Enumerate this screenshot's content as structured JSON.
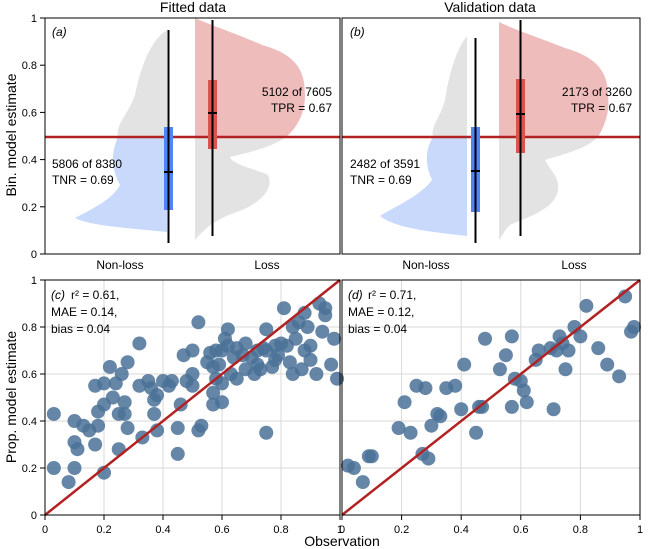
{
  "titles": {
    "left": "Fitted data",
    "right": "Validation data"
  },
  "labels": {
    "ylabel_top": "Bin. model estimate",
    "ylabel_bottom": "Prop. model estimate",
    "xlabel_bottom": "Observation",
    "cat_nonloss": "Non-loss",
    "cat_loss": "Loss"
  },
  "panels_top": [
    {
      "tag": "(a)",
      "tpr_count": "5102 of 7605",
      "tpr": "TPR = 0.67",
      "tnr_count": "5806 of 8380",
      "tnr": "TNR = 0.69"
    },
    {
      "tag": "(b)",
      "tpr_count": "2173 of 3260",
      "tpr": "TPR = 0.67",
      "tnr_count": "2482 of 3591",
      "tnr": "TNR = 0.69"
    }
  ],
  "panels_bottom": [
    {
      "tag": "(c)",
      "r2": "r² = 0.61,",
      "mae": "MAE = 0.14,",
      "bias": "bias = 0.04"
    },
    {
      "tag": "(d)",
      "r2": "r² = 0.71,",
      "mae": "MAE = 0.12,",
      "bias": "bias = 0.04"
    }
  ],
  "colors": {
    "threshold": "#b22222",
    "nonloss": "#4f86f7",
    "loss": "#d9534f",
    "nonloss_fill": "#c9d9fb",
    "loss_fill": "#efbcbc",
    "grey_fill": "#e3e3e3",
    "point": "#4a7196"
  },
  "chart_data": [
    {
      "type": "violin",
      "panel": "a",
      "title": "Fitted data",
      "ylabel": "Bin. model estimate",
      "categories": [
        "Non-loss",
        "Loss"
      ],
      "ylim": [
        0,
        1
      ],
      "yticks": [
        0,
        0.2,
        0.4,
        0.6,
        0.8,
        1
      ],
      "threshold": 0.5,
      "boxes": [
        {
          "category": "Non-loss",
          "median": 0.35,
          "q1": 0.18,
          "q3": 0.54,
          "whisker_low": 0.04,
          "whisker_high": 0.95
        },
        {
          "category": "Loss",
          "median": 0.6,
          "q1": 0.45,
          "q3": 0.74,
          "whisker_low": 0.08,
          "whisker_high": 0.98
        }
      ]
    },
    {
      "type": "violin",
      "panel": "b",
      "title": "Validation data",
      "categories": [
        "Non-loss",
        "Loss"
      ],
      "ylim": [
        0,
        1
      ],
      "yticks": [
        0,
        0.2,
        0.4,
        0.6,
        0.8,
        1
      ],
      "threshold": 0.5,
      "boxes": [
        {
          "category": "Non-loss",
          "median": 0.35,
          "q1": 0.18,
          "q3": 0.54,
          "whisker_low": 0.04,
          "whisker_high": 0.93
        },
        {
          "category": "Loss",
          "median": 0.595,
          "q1": 0.44,
          "q3": 0.74,
          "whisker_low": 0.08,
          "whisker_high": 0.98
        }
      ]
    },
    {
      "type": "scatter",
      "panel": "c",
      "xlabel": "Observation",
      "ylabel": "Prop. model estimate",
      "xlim": [
        0,
        1
      ],
      "ylim": [
        0,
        1
      ],
      "xticks": [
        0,
        0.2,
        0.4,
        0.6,
        0.8,
        1
      ],
      "yticks": [
        0,
        0.2,
        0.4,
        0.6,
        0.8,
        1
      ],
      "reference_line": "1:1",
      "points": [
        [
          0.03,
          0.43
        ],
        [
          0.03,
          0.2
        ],
        [
          0.08,
          0.14
        ],
        [
          0.1,
          0.2
        ],
        [
          0.1,
          0.31
        ],
        [
          0.11,
          0.28
        ],
        [
          0.1,
          0.4
        ],
        [
          0.13,
          0.38
        ],
        [
          0.15,
          0.36
        ],
        [
          0.17,
          0.55
        ],
        [
          0.18,
          0.44
        ],
        [
          0.18,
          0.38
        ],
        [
          0.17,
          0.3
        ],
        [
          0.2,
          0.47
        ],
        [
          0.2,
          0.56
        ],
        [
          0.2,
          0.18
        ],
        [
          0.22,
          0.63
        ],
        [
          0.23,
          0.5
        ],
        [
          0.24,
          0.56
        ],
        [
          0.25,
          0.43
        ],
        [
          0.25,
          0.28
        ],
        [
          0.26,
          0.6
        ],
        [
          0.27,
          0.43
        ],
        [
          0.27,
          0.48
        ],
        [
          0.28,
          0.65
        ],
        [
          0.28,
          0.37
        ],
        [
          0.32,
          0.55
        ],
        [
          0.32,
          0.73
        ],
        [
          0.33,
          0.33
        ],
        [
          0.35,
          0.57
        ],
        [
          0.36,
          0.54
        ],
        [
          0.37,
          0.49
        ],
        [
          0.37,
          0.43
        ],
        [
          0.38,
          0.51
        ],
        [
          0.38,
          0.36
        ],
        [
          0.4,
          0.57
        ],
        [
          0.42,
          0.55
        ],
        [
          0.43,
          0.57
        ],
        [
          0.45,
          0.37
        ],
        [
          0.45,
          0.26
        ],
        [
          0.46,
          0.47
        ],
        [
          0.47,
          0.68
        ],
        [
          0.48,
          0.57
        ],
        [
          0.5,
          0.55
        ],
        [
          0.5,
          0.6
        ],
        [
          0.5,
          0.7
        ],
        [
          0.52,
          0.36
        ],
        [
          0.52,
          0.82
        ],
        [
          0.53,
          0.38
        ],
        [
          0.55,
          0.65
        ],
        [
          0.56,
          0.69
        ],
        [
          0.57,
          0.52
        ],
        [
          0.57,
          0.47
        ],
        [
          0.57,
          0.63
        ],
        [
          0.58,
          0.7
        ],
        [
          0.58,
          0.58
        ],
        [
          0.59,
          0.64
        ],
        [
          0.6,
          0.7
        ],
        [
          0.6,
          0.56
        ],
        [
          0.6,
          0.48
        ],
        [
          0.61,
          0.75
        ],
        [
          0.62,
          0.79
        ],
        [
          0.62,
          0.72
        ],
        [
          0.63,
          0.6
        ],
        [
          0.64,
          0.67
        ],
        [
          0.65,
          0.71
        ],
        [
          0.65,
          0.58
        ],
        [
          0.67,
          0.68
        ],
        [
          0.68,
          0.62
        ],
        [
          0.68,
          0.73
        ],
        [
          0.7,
          0.67
        ],
        [
          0.71,
          0.6
        ],
        [
          0.72,
          0.7
        ],
        [
          0.72,
          0.64
        ],
        [
          0.73,
          0.62
        ],
        [
          0.74,
          0.71
        ],
        [
          0.75,
          0.79
        ],
        [
          0.75,
          0.7
        ],
        [
          0.75,
          0.35
        ],
        [
          0.77,
          0.63
        ],
        [
          0.78,
          0.66
        ],
        [
          0.78,
          0.72
        ],
        [
          0.79,
          0.68
        ],
        [
          0.8,
          0.73
        ],
        [
          0.81,
          0.88
        ],
        [
          0.82,
          0.72
        ],
        [
          0.83,
          0.65
        ],
        [
          0.84,
          0.6
        ],
        [
          0.84,
          0.8
        ],
        [
          0.85,
          0.75
        ],
        [
          0.86,
          0.82
        ],
        [
          0.87,
          0.62
        ],
        [
          0.88,
          0.7
        ],
        [
          0.89,
          0.8
        ],
        [
          0.9,
          0.72
        ],
        [
          0.9,
          0.66
        ],
        [
          0.92,
          0.6
        ],
        [
          0.93,
          0.9
        ],
        [
          0.95,
          0.88
        ],
        [
          0.95,
          0.85
        ],
        [
          0.97,
          0.64
        ],
        [
          0.98,
          0.75
        ],
        [
          0.99,
          0.58
        ],
        [
          0.88,
          0.86
        ],
        [
          0.94,
          0.78
        ]
      ]
    },
    {
      "type": "scatter",
      "panel": "d",
      "xlabel": "Observation",
      "xlim": [
        0,
        1
      ],
      "ylim": [
        0,
        1
      ],
      "xticks": [
        0,
        0.2,
        0.4,
        0.6,
        0.8,
        1
      ],
      "yticks": [
        0,
        0.2,
        0.4,
        0.6,
        0.8,
        1
      ],
      "reference_line": "1:1",
      "points": [
        [
          0.02,
          0.21
        ],
        [
          0.04,
          0.2
        ],
        [
          0.07,
          0.14
        ],
        [
          0.09,
          0.25
        ],
        [
          0.1,
          0.25
        ],
        [
          0.19,
          0.37
        ],
        [
          0.21,
          0.48
        ],
        [
          0.23,
          0.35
        ],
        [
          0.25,
          0.55
        ],
        [
          0.27,
          0.26
        ],
        [
          0.28,
          0.54
        ],
        [
          0.29,
          0.24
        ],
        [
          0.3,
          0.38
        ],
        [
          0.32,
          0.43
        ],
        [
          0.33,
          0.42
        ],
        [
          0.35,
          0.54
        ],
        [
          0.38,
          0.55
        ],
        [
          0.4,
          0.45
        ],
        [
          0.41,
          0.64
        ],
        [
          0.45,
          0.35
        ],
        [
          0.46,
          0.46
        ],
        [
          0.47,
          0.46
        ],
        [
          0.48,
          0.75
        ],
        [
          0.53,
          0.62
        ],
        [
          0.55,
          0.68
        ],
        [
          0.57,
          0.76
        ],
        [
          0.57,
          0.46
        ],
        [
          0.58,
          0.58
        ],
        [
          0.6,
          0.57
        ],
        [
          0.61,
          0.53
        ],
        [
          0.62,
          0.48
        ],
        [
          0.65,
          0.66
        ],
        [
          0.66,
          0.7
        ],
        [
          0.7,
          0.71
        ],
        [
          0.71,
          0.45
        ],
        [
          0.72,
          0.7
        ],
        [
          0.73,
          0.76
        ],
        [
          0.74,
          0.73
        ],
        [
          0.75,
          0.62
        ],
        [
          0.76,
          0.7
        ],
        [
          0.78,
          0.8
        ],
        [
          0.8,
          0.76
        ],
        [
          0.82,
          0.89
        ],
        [
          0.86,
          0.71
        ],
        [
          0.89,
          0.64
        ],
        [
          0.93,
          0.59
        ],
        [
          0.95,
          0.93
        ],
        [
          0.97,
          0.78
        ],
        [
          0.98,
          0.8
        ]
      ]
    }
  ]
}
